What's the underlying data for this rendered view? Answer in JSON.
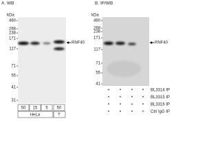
{
  "panels": [
    {
      "label": "A. WB",
      "unit": "kDa",
      "markers": [
        "460",
        "268",
        "238",
        "171",
        "117",
        "71",
        "55",
        "41",
        "31"
      ],
      "target": "RNF40",
      "lanes": [
        "50",
        "15",
        "5",
        "50"
      ],
      "groups": [
        "HeLa",
        "T"
      ]
    },
    {
      "label": "B. IP/WB",
      "unit": "kDa",
      "markers": [
        "460",
        "268",
        "238",
        "171",
        "117",
        "71",
        "55",
        "41"
      ],
      "target": "RNF40",
      "rows": [
        {
          "name": "BL3314 IP",
          "marks": [
            "+",
            "•",
            "•",
            "•"
          ]
        },
        {
          "name": "BL3315 IP",
          "marks": [
            "•",
            "+",
            "•",
            "•"
          ]
        },
        {
          "name": "BL3316 IP",
          "marks": [
            "•",
            "•",
            "+",
            "•"
          ]
        },
        {
          "name": "Ctrl IgG IP",
          "marks": [
            "•",
            "•",
            "•",
            "+"
          ]
        }
      ]
    }
  ]
}
